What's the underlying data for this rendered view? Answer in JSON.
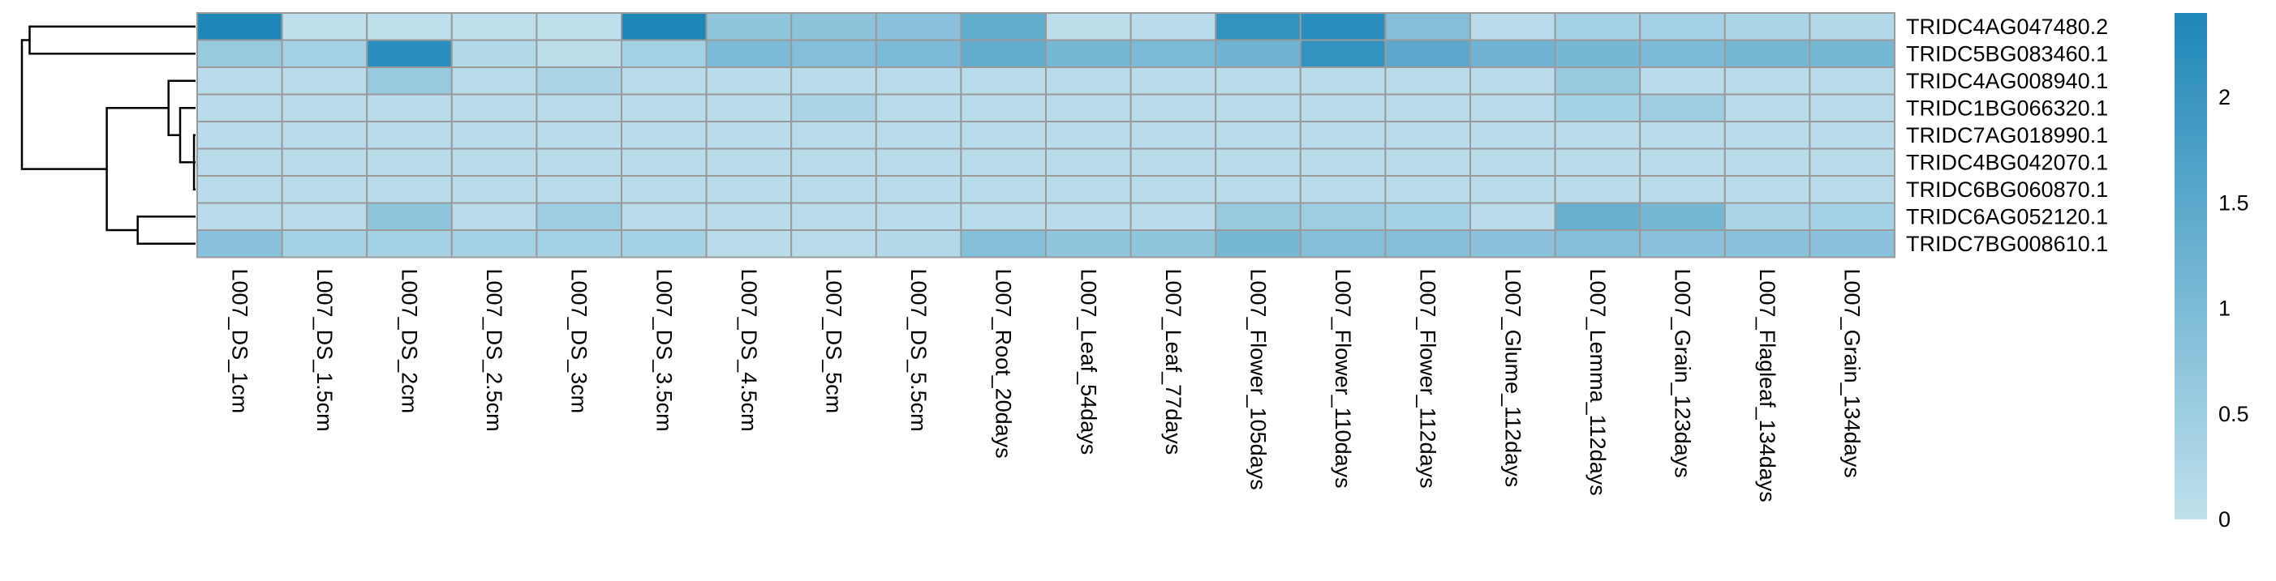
{
  "chart_data": {
    "type": "heatmap",
    "title": "",
    "colorscale": {
      "low_color": "#bfe0ec",
      "high_color": "#1f87b8",
      "min": 0,
      "max": 2.4,
      "ticks": [
        0,
        0.5,
        1,
        1.5,
        2
      ],
      "tick_labels": [
        "0",
        "0.5",
        "1",
        "1.5",
        "2"
      ]
    },
    "columns": [
      "L007_DS_1cm",
      "L007_DS_1.5cm",
      "L007_DS_2cm",
      "L007_DS_2.5cm",
      "L007_DS_3cm",
      "L007_DS_3.5cm",
      "L007_DS_4.5cm",
      "L007_DS_5cm",
      "L007_DS_5.5cm",
      "L007_Root_20days",
      "L007_Leaf_54days",
      "L007_Leaf_77days",
      "L007_Flower_105days",
      "L007_Flower_110days",
      "L007_Flower_112days",
      "L007_Glume_112days",
      "L007_Lemma_112days",
      "L007_Grain_123days",
      "L007_Flagleaf_134days",
      "L007_Grain_134days"
    ],
    "rows": [
      "TRIDC4AG047480.2",
      "TRIDC5BG083460.1",
      "TRIDC4AG008940.1",
      "TRIDC1BG066320.1",
      "TRIDC7AG018990.1",
      "TRIDC4BG042070.1",
      "TRIDC6BG060870.1",
      "TRIDC6AG052120.1",
      "TRIDC7BG008610.1"
    ],
    "values": [
      [
        2.4,
        0.02,
        0.02,
        0.02,
        0.02,
        2.4,
        0.7,
        0.75,
        0.8,
        1.4,
        0.05,
        0.1,
        2.1,
        2.2,
        0.9,
        0.1,
        0.4,
        0.4,
        0.3,
        0.2
      ],
      [
        0.6,
        0.4,
        2.2,
        0.2,
        0.05,
        0.4,
        1.0,
        0.9,
        1.0,
        1.4,
        1.1,
        1.0,
        1.2,
        2.1,
        1.5,
        1.2,
        1.1,
        1.0,
        1.1,
        1.1
      ],
      [
        0.1,
        0.1,
        0.6,
        0.1,
        0.3,
        0.1,
        0.1,
        0.1,
        0.1,
        0.1,
        0.1,
        0.1,
        0.1,
        0.1,
        0.1,
        0.1,
        0.6,
        0.1,
        0.1,
        0.1
      ],
      [
        0.1,
        0.1,
        0.1,
        0.1,
        0.1,
        0.1,
        0.1,
        0.3,
        0.1,
        0.1,
        0.1,
        0.1,
        0.1,
        0.1,
        0.1,
        0.1,
        0.4,
        0.5,
        0.1,
        0.1
      ],
      [
        0.1,
        0.1,
        0.1,
        0.1,
        0.1,
        0.1,
        0.1,
        0.1,
        0.1,
        0.1,
        0.1,
        0.1,
        0.1,
        0.1,
        0.1,
        0.1,
        0.1,
        0.1,
        0.1,
        0.1
      ],
      [
        0.1,
        0.1,
        0.1,
        0.1,
        0.1,
        0.1,
        0.1,
        0.1,
        0.1,
        0.1,
        0.1,
        0.1,
        0.1,
        0.1,
        0.1,
        0.1,
        0.1,
        0.1,
        0.1,
        0.1
      ],
      [
        0.1,
        0.1,
        0.1,
        0.1,
        0.1,
        0.1,
        0.1,
        0.1,
        0.1,
        0.1,
        0.1,
        0.1,
        0.1,
        0.1,
        0.1,
        0.1,
        0.1,
        0.1,
        0.1,
        0.1
      ],
      [
        0.1,
        0.1,
        0.7,
        0.1,
        0.5,
        0.1,
        0.1,
        0.1,
        0.1,
        0.1,
        0.1,
        0.1,
        0.6,
        0.5,
        0.4,
        0.1,
        1.3,
        1.1,
        0.3,
        0.4
      ],
      [
        0.8,
        0.4,
        0.4,
        0.4,
        0.4,
        0.4,
        0.1,
        0.1,
        0.2,
        0.9,
        0.7,
        0.7,
        1.1,
        0.9,
        0.9,
        0.8,
        0.9,
        0.8,
        0.8,
        0.8
      ]
    ],
    "dendrogram": {
      "side": "rows",
      "merges": [
        {
          "left": "r4",
          "right": "r6",
          "height": 0.02
        },
        {
          "left": "r5",
          "right": "c0",
          "height": 0.05
        },
        {
          "left": "r3",
          "right": "c1",
          "height": 0.2
        },
        {
          "left": "r2",
          "right": "c2",
          "height": 0.35
        },
        {
          "left": "r7",
          "right": "r8",
          "height": 0.75
        },
        {
          "left": "c3",
          "right": "c4",
          "height": 1.15
        },
        {
          "left": "r0",
          "right": "r1",
          "height": 2.15
        },
        {
          "left": "c6",
          "right": "c5",
          "height": 2.25
        }
      ]
    }
  }
}
